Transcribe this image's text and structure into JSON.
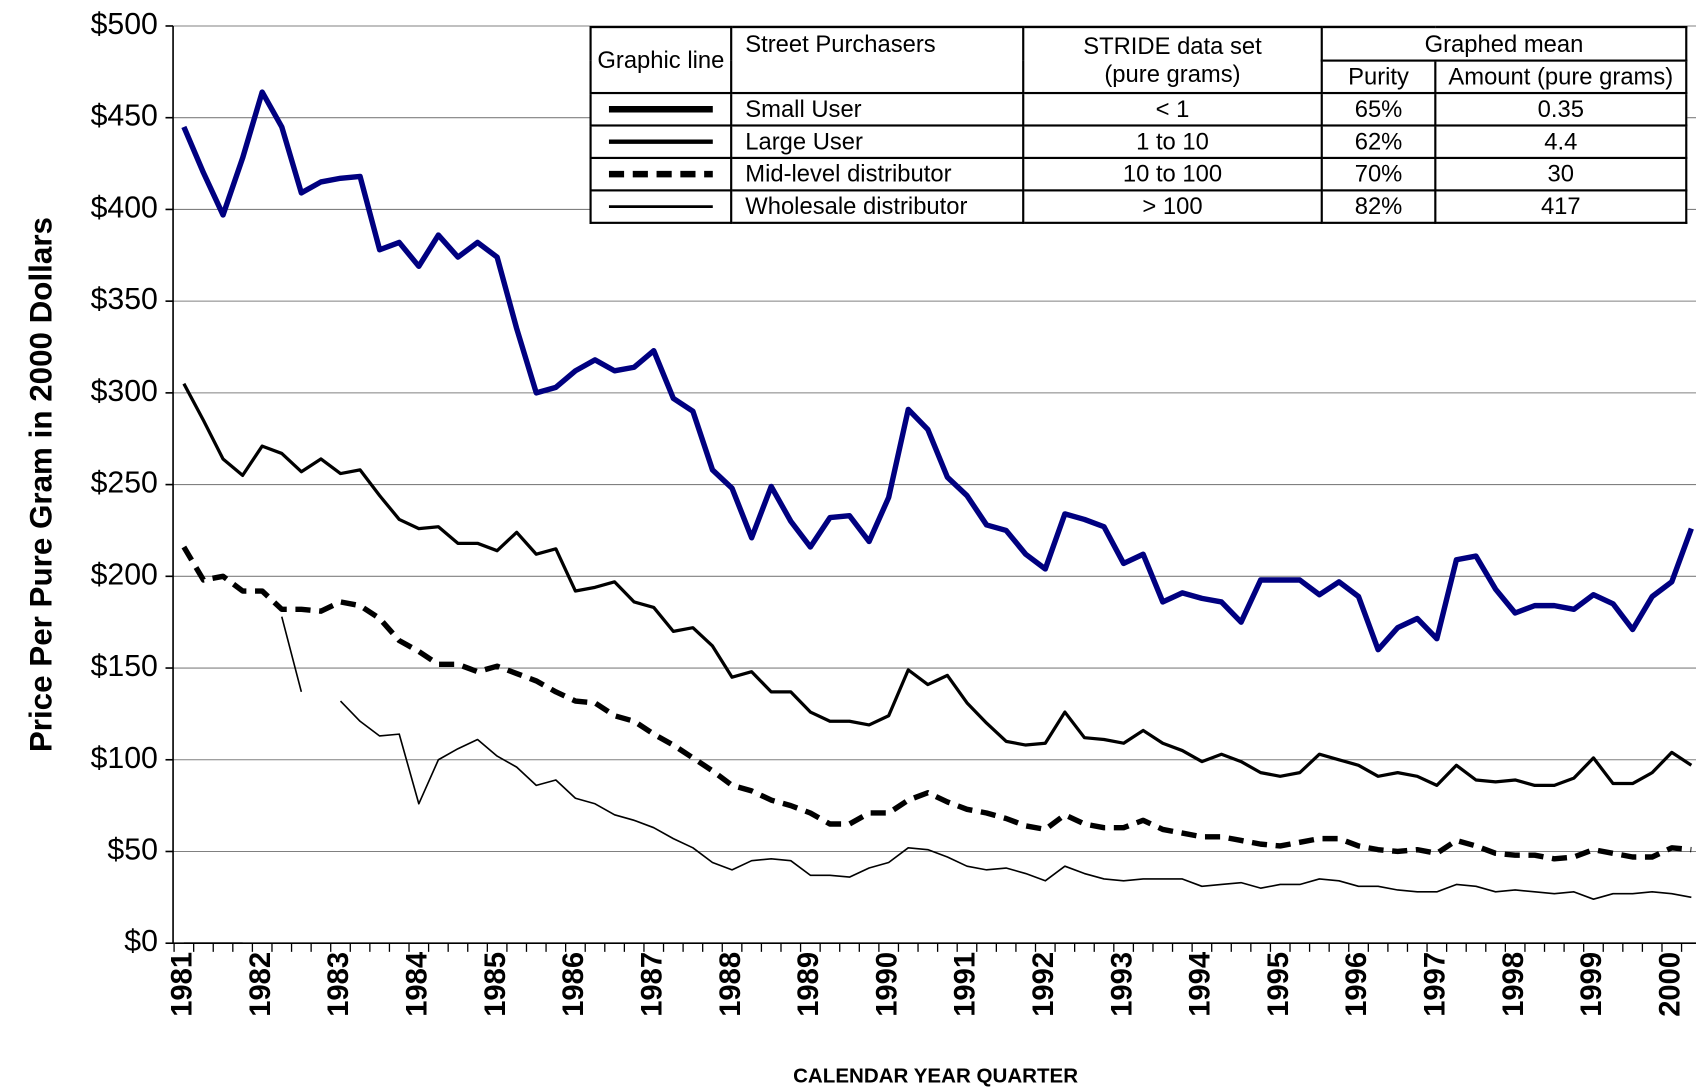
{
  "chart_data": {
    "type": "line",
    "y_axis_label": "Price Per Pure Gram in 2000 Dollars",
    "x_axis_label": "CALENDAR YEAR QUARTER",
    "categories": [
      "1981",
      null,
      null,
      null,
      "1982",
      null,
      null,
      null,
      "1983",
      null,
      null,
      null,
      "1984",
      null,
      null,
      null,
      "1985",
      null,
      null,
      null,
      "1986",
      null,
      null,
      null,
      "1987",
      null,
      null,
      null,
      "1988",
      null,
      null,
      null,
      "1989",
      null,
      null,
      null,
      "1990",
      null,
      null,
      null,
      "1991",
      null,
      null,
      null,
      "1992",
      null,
      null,
      null,
      "1993",
      null,
      null,
      null,
      "1994",
      null,
      null,
      null,
      "1995",
      null,
      null,
      null,
      "1996",
      null,
      null,
      null,
      "1997",
      null,
      null,
      null,
      "1998",
      null,
      null,
      null,
      "1999",
      null,
      null,
      null,
      "2000",
      null
    ],
    "ylim": [
      0,
      500
    ],
    "yticks": [
      {
        "value": 0,
        "label": "$0"
      },
      {
        "value": 50,
        "label": "$50"
      },
      {
        "value": 100,
        "label": "$100"
      },
      {
        "value": 150,
        "label": "$150"
      },
      {
        "value": 200,
        "label": "$200"
      },
      {
        "value": 250,
        "label": "$250"
      },
      {
        "value": 300,
        "label": "$300"
      },
      {
        "value": 350,
        "label": "$350"
      },
      {
        "value": 400,
        "label": "$400"
      },
      {
        "value": 450,
        "label": "$450"
      },
      {
        "value": 500,
        "label": "$500"
      }
    ],
    "grid": true,
    "series": [
      {
        "name": "Small User",
        "color": "#000080",
        "line_width": 5,
        "dash": null,
        "values": [
          445,
          420,
          397,
          428,
          464,
          445,
          409,
          415,
          417,
          418,
          378,
          382,
          369,
          386,
          374,
          382,
          374,
          335,
          300,
          303,
          312,
          318,
          312,
          314,
          323,
          297,
          290,
          258,
          248,
          221,
          249,
          230,
          216,
          232,
          233,
          219,
          243,
          291,
          280,
          254,
          244,
          228,
          225,
          212,
          204,
          234,
          231,
          227,
          207,
          212,
          186,
          191,
          188,
          186,
          175,
          198,
          198,
          198,
          190,
          197,
          189,
          160,
          172,
          177,
          166,
          209,
          211,
          193,
          180,
          184,
          184,
          182,
          190,
          185,
          171,
          189,
          197,
          226
        ]
      },
      {
        "name": "Large User",
        "color": "#000000",
        "line_width": 3,
        "dash": null,
        "values": [
          305,
          285,
          264,
          255,
          271,
          267,
          257,
          264,
          256,
          258,
          244,
          231,
          226,
          227,
          218,
          218,
          214,
          224,
          212,
          215,
          192,
          194,
          197,
          186,
          183,
          170,
          172,
          162,
          145,
          148,
          137,
          137,
          126,
          121,
          121,
          119,
          124,
          149,
          141,
          146,
          131,
          120,
          110,
          108,
          109,
          126,
          112,
          111,
          109,
          116,
          109,
          105,
          99,
          103,
          99,
          93,
          91,
          93,
          103,
          100,
          97,
          91,
          93,
          91,
          86,
          97,
          89,
          88,
          89,
          86,
          86,
          90,
          101,
          87,
          87,
          93,
          104,
          97
        ]
      },
      {
        "name": "Mid-level distributor",
        "color": "#000000",
        "line_width": 5,
        "dash": "14 8",
        "values": [
          216,
          198,
          200,
          192,
          192,
          182,
          182,
          181,
          186,
          184,
          177,
          165,
          159,
          152,
          152,
          148,
          151,
          147,
          143,
          137,
          132,
          131,
          124,
          121,
          114,
          108,
          101,
          94,
          86,
          83,
          78,
          75,
          71,
          65,
          65,
          71,
          71,
          78,
          82,
          77,
          73,
          71,
          68,
          64,
          62,
          70,
          65,
          63,
          63,
          67,
          62,
          60,
          58,
          58,
          56,
          54,
          53,
          55,
          57,
          57,
          53,
          51,
          50,
          51,
          49,
          56,
          53,
          49,
          48,
          48,
          46,
          47,
          51,
          49,
          47,
          47,
          52,
          51
        ]
      },
      {
        "name": "Wholesale distributor",
        "color": "#000000",
        "line_width": 1.5,
        "dash": null,
        "values": [
          0,
          0,
          0,
          0,
          null,
          178,
          137,
          null,
          132,
          121,
          113,
          114,
          76,
          100,
          106,
          111,
          102,
          96,
          86,
          89,
          79,
          76,
          70,
          67,
          63,
          57,
          52,
          44,
          40,
          45,
          46,
          45,
          37,
          37,
          36,
          41,
          44,
          52,
          51,
          47,
          42,
          40,
          41,
          38,
          34,
          42,
          38,
          35,
          34,
          35,
          35,
          35,
          31,
          32,
          33,
          30,
          32,
          32,
          35,
          34,
          31,
          31,
          29,
          28,
          28,
          32,
          31,
          28,
          29,
          28,
          27,
          28,
          24,
          27,
          27,
          28,
          27,
          25
        ]
      }
    ],
    "legend_table": {
      "header": [
        "Graphic line",
        "Street Purchasers",
        "STRIDE data set (pure grams)",
        "Graphed mean",
        "Purity",
        "Amount (pure grams)"
      ],
      "rows": [
        [
          "Small User",
          "< 1",
          "65%",
          "0.35"
        ],
        [
          "Large User",
          "1 to 10",
          "62%",
          "4.4"
        ],
        [
          "Mid-level distributor",
          "10 to 100",
          "70%",
          "30"
        ],
        [
          "Wholesale distributor",
          "> 100",
          "82%",
          "417"
        ]
      ]
    }
  }
}
